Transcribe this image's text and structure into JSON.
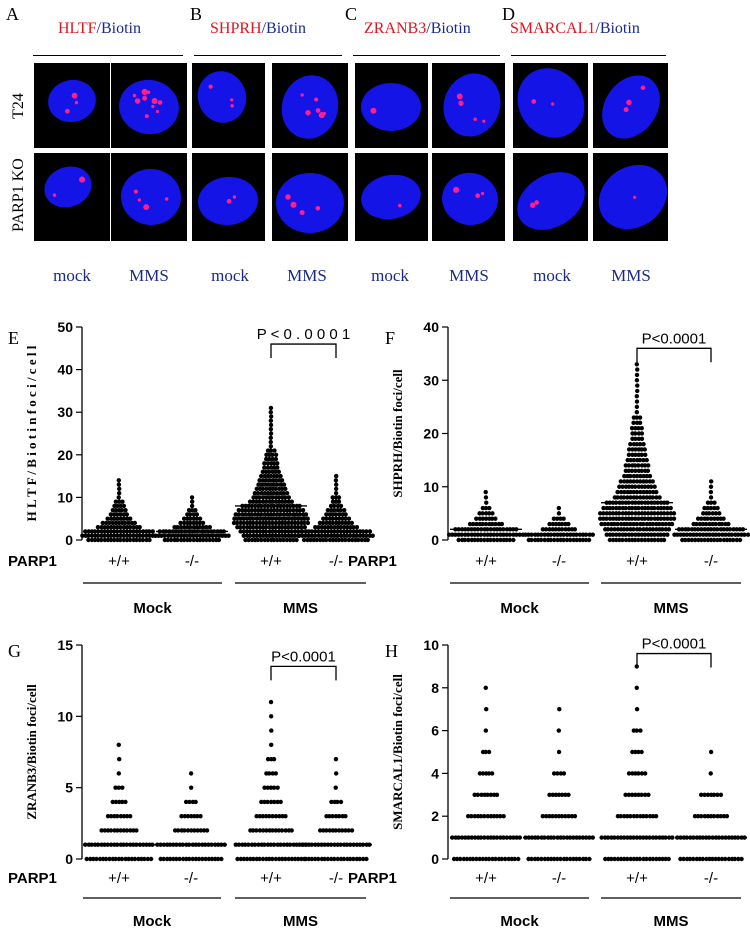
{
  "micrographs": {
    "panels": [
      {
        "letter": "A",
        "protein": "HLTF",
        "sep": "/",
        "marker": "Biotin"
      },
      {
        "letter": "B",
        "protein": "SHPRH",
        "sep": "/",
        "marker": "Biotin"
      },
      {
        "letter": "C",
        "protein": "ZRANB3",
        "sep": "/",
        "marker": "Biotin"
      },
      {
        "letter": "D",
        "protein": "SMARCAL1",
        "sep": "/",
        "marker": "Biotin"
      }
    ],
    "row_labels": [
      "T24",
      "PARP1 KO"
    ],
    "col_labels": [
      "mock",
      "MMS"
    ],
    "colors": {
      "nucleus": "#1414e6",
      "foci": "#ff1e8c",
      "background": "#000000"
    }
  },
  "chart_data": [
    {
      "panel": "E",
      "type": "scatter",
      "ylabel": "H L T F / B i o t i n  f o c i / c e l l",
      "ylim": [
        0,
        50
      ],
      "yticks": [
        0,
        10,
        20,
        30,
        40,
        50
      ],
      "row_label": "PARP1",
      "genotypes": [
        "+/+",
        "-/-",
        "+/+",
        "-/-"
      ],
      "groups": [
        "Mock",
        "MMS"
      ],
      "pvalue": "P < 0 . 0 0 0 1",
      "compare": [
        2,
        3
      ],
      "bracket_y": 46,
      "series": [
        {
          "genotype": "+/+",
          "group": "Mock",
          "mean": 2,
          "max": 14
        },
        {
          "genotype": "-/-",
          "group": "Mock",
          "mean": 2,
          "max": 10
        },
        {
          "genotype": "+/+",
          "group": "MMS",
          "mean": 8,
          "max": 31
        },
        {
          "genotype": "-/-",
          "group": "MMS",
          "mean": 2,
          "max": 15
        }
      ]
    },
    {
      "panel": "F",
      "type": "scatter",
      "ylabel": "SHPRH/Biotin foci/cell",
      "ylim": [
        0,
        40
      ],
      "yticks": [
        0,
        10,
        20,
        30,
        40
      ],
      "row_label": "PARP1",
      "genotypes": [
        "+/+",
        "-/-",
        "+/+",
        "-/-"
      ],
      "groups": [
        "Mock",
        "MMS"
      ],
      "pvalue": "P<0.0001",
      "compare": [
        2,
        3
      ],
      "bracket_y": 36,
      "series": [
        {
          "genotype": "+/+",
          "group": "Mock",
          "mean": 2,
          "max": 9
        },
        {
          "genotype": "-/-",
          "group": "Mock",
          "mean": 1,
          "max": 6
        },
        {
          "genotype": "+/+",
          "group": "MMS",
          "mean": 7,
          "max": 33
        },
        {
          "genotype": "-/-",
          "group": "MMS",
          "mean": 2,
          "max": 11
        }
      ]
    },
    {
      "panel": "G",
      "type": "scatter",
      "ylabel": "ZRANB3/Biotin foci/cell",
      "ylim": [
        0,
        15
      ],
      "yticks": [
        0,
        5,
        10,
        15
      ],
      "row_label": "PARP1",
      "genotypes": [
        "+/+",
        "-/-",
        "+/+",
        "-/-"
      ],
      "groups": [
        "Mock",
        "MMS"
      ],
      "pvalue": "P<0.0001",
      "compare": [
        2,
        3
      ],
      "bracket_y": 13.5,
      "series": [
        {
          "genotype": "+/+",
          "group": "Mock",
          "mean": 1,
          "max": 8
        },
        {
          "genotype": "-/-",
          "group": "Mock",
          "mean": 1,
          "max": 6
        },
        {
          "genotype": "+/+",
          "group": "MMS",
          "mean": 1,
          "max": 11
        },
        {
          "genotype": "-/-",
          "group": "MMS",
          "mean": 1,
          "max": 7
        }
      ]
    },
    {
      "panel": "H",
      "type": "scatter",
      "ylabel": "SMARCAL1/Biotin foci/cell",
      "ylim": [
        0,
        10
      ],
      "yticks": [
        0,
        2,
        4,
        6,
        8,
        10
      ],
      "row_label": "PARP1",
      "genotypes": [
        "+/+",
        "-/-",
        "+/+",
        "-/-"
      ],
      "groups": [
        "Mock",
        "MMS"
      ],
      "pvalue": "P<0.0001",
      "compare": [
        2,
        3
      ],
      "bracket_y": 9.6,
      "series": [
        {
          "genotype": "+/+",
          "group": "Mock",
          "mean": 1,
          "max": 8
        },
        {
          "genotype": "-/-",
          "group": "Mock",
          "mean": 1,
          "max": 7
        },
        {
          "genotype": "+/+",
          "group": "MMS",
          "mean": 1,
          "max": 9
        },
        {
          "genotype": "-/-",
          "group": "MMS",
          "mean": 1,
          "max": 5
        }
      ]
    }
  ]
}
